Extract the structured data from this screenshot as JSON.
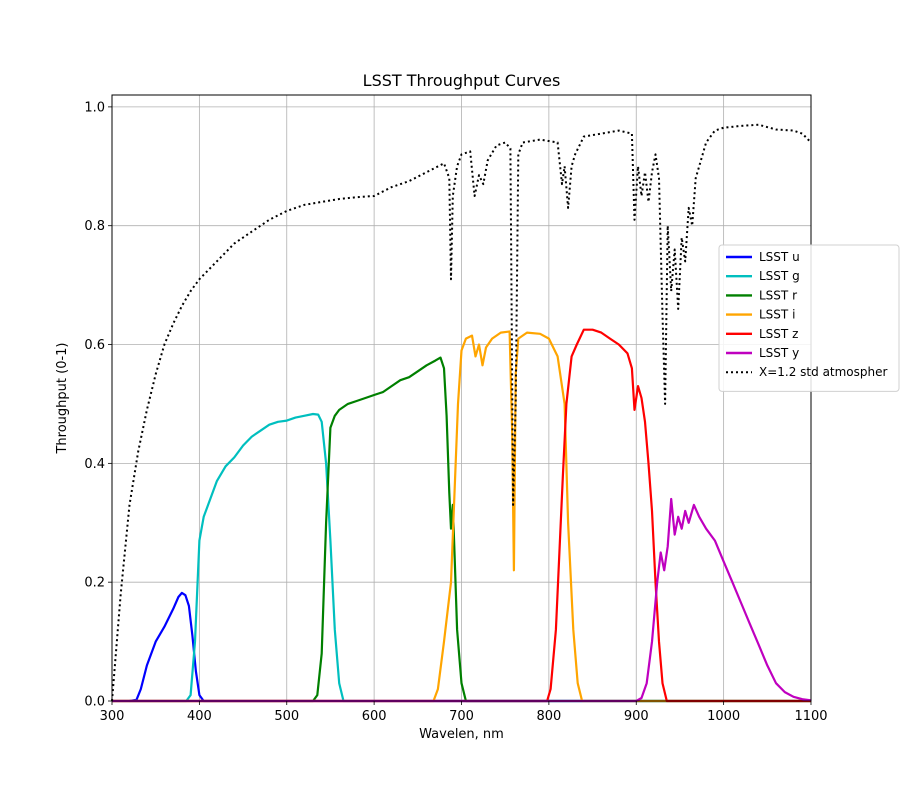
{
  "chart_data": {
    "type": "line",
    "title": "LSST Throughput Curves",
    "xlabel": "Wavelen, nm",
    "ylabel": "Throughput (0-1)",
    "xlim": [
      300,
      1100
    ],
    "ylim": [
      0,
      1.02
    ],
    "xticks": [
      "300",
      "400",
      "500",
      "600",
      "700",
      "800",
      "900",
      "1000",
      "1100"
    ],
    "yticks": [
      "0.0",
      "0.2",
      "0.4",
      "0.6",
      "0.8",
      "1.0"
    ],
    "grid": true,
    "legend_position": "right",
    "series": [
      {
        "name": "LSST u",
        "color": "#0000ff",
        "style": "solid",
        "points": [
          [
            320,
            0
          ],
          [
            328,
            0.002
          ],
          [
            333,
            0.02
          ],
          [
            340,
            0.06
          ],
          [
            350,
            0.1
          ],
          [
            360,
            0.125
          ],
          [
            370,
            0.155
          ],
          [
            376,
            0.175
          ],
          [
            380,
            0.182
          ],
          [
            384,
            0.178
          ],
          [
            388,
            0.16
          ],
          [
            392,
            0.11
          ],
          [
            396,
            0.05
          ],
          [
            400,
            0.01
          ],
          [
            405,
            0
          ],
          [
            1100,
            0
          ]
        ]
      },
      {
        "name": "LSST g",
        "color": "#00bfbf",
        "style": "solid",
        "points": [
          [
            300,
            0
          ],
          [
            385,
            0
          ],
          [
            390,
            0.01
          ],
          [
            395,
            0.1
          ],
          [
            400,
            0.27
          ],
          [
            405,
            0.31
          ],
          [
            410,
            0.33
          ],
          [
            420,
            0.37
          ],
          [
            430,
            0.395
          ],
          [
            440,
            0.41
          ],
          [
            450,
            0.43
          ],
          [
            460,
            0.445
          ],
          [
            470,
            0.455
          ],
          [
            480,
            0.465
          ],
          [
            490,
            0.47
          ],
          [
            500,
            0.472
          ],
          [
            510,
            0.477
          ],
          [
            520,
            0.48
          ],
          [
            530,
            0.483
          ],
          [
            536,
            0.482
          ],
          [
            540,
            0.47
          ],
          [
            545,
            0.4
          ],
          [
            550,
            0.27
          ],
          [
            555,
            0.12
          ],
          [
            560,
            0.03
          ],
          [
            565,
            0
          ],
          [
            1100,
            0
          ]
        ]
      },
      {
        "name": "LSST r",
        "color": "#008000",
        "style": "solid",
        "points": [
          [
            300,
            0
          ],
          [
            530,
            0
          ],
          [
            535,
            0.01
          ],
          [
            540,
            0.08
          ],
          [
            545,
            0.3
          ],
          [
            550,
            0.46
          ],
          [
            555,
            0.48
          ],
          [
            560,
            0.49
          ],
          [
            570,
            0.5
          ],
          [
            580,
            0.505
          ],
          [
            590,
            0.51
          ],
          [
            600,
            0.515
          ],
          [
            610,
            0.52
          ],
          [
            620,
            0.53
          ],
          [
            630,
            0.54
          ],
          [
            640,
            0.545
          ],
          [
            650,
            0.555
          ],
          [
            660,
            0.565
          ],
          [
            670,
            0.573
          ],
          [
            676,
            0.578
          ],
          [
            680,
            0.56
          ],
          [
            683,
            0.48
          ],
          [
            686,
            0.35
          ],
          [
            688,
            0.29
          ],
          [
            690,
            0.33
          ],
          [
            692,
            0.25
          ],
          [
            695,
            0.12
          ],
          [
            700,
            0.03
          ],
          [
            705,
            0
          ],
          [
            1100,
            0
          ]
        ]
      },
      {
        "name": "LSST i",
        "color": "#ffa500",
        "style": "solid",
        "points": [
          [
            300,
            0
          ],
          [
            668,
            0
          ],
          [
            673,
            0.02
          ],
          [
            680,
            0.1
          ],
          [
            688,
            0.2
          ],
          [
            692,
            0.35
          ],
          [
            696,
            0.5
          ],
          [
            700,
            0.59
          ],
          [
            705,
            0.61
          ],
          [
            712,
            0.615
          ],
          [
            716,
            0.58
          ],
          [
            720,
            0.6
          ],
          [
            724,
            0.565
          ],
          [
            728,
            0.595
          ],
          [
            735,
            0.61
          ],
          [
            745,
            0.62
          ],
          [
            755,
            0.622
          ],
          [
            758,
            0.45
          ],
          [
            760,
            0.22
          ],
          [
            762,
            0.55
          ],
          [
            765,
            0.61
          ],
          [
            775,
            0.62
          ],
          [
            790,
            0.618
          ],
          [
            800,
            0.61
          ],
          [
            810,
            0.58
          ],
          [
            818,
            0.5
          ],
          [
            822,
            0.3
          ],
          [
            828,
            0.12
          ],
          [
            833,
            0.03
          ],
          [
            838,
            0
          ],
          [
            1100,
            0
          ]
        ]
      },
      {
        "name": "LSST z",
        "color": "#ff0000",
        "style": "solid",
        "points": [
          [
            300,
            0
          ],
          [
            798,
            0
          ],
          [
            802,
            0.02
          ],
          [
            808,
            0.12
          ],
          [
            812,
            0.25
          ],
          [
            816,
            0.38
          ],
          [
            820,
            0.5
          ],
          [
            826,
            0.58
          ],
          [
            832,
            0.6
          ],
          [
            840,
            0.625
          ],
          [
            850,
            0.625
          ],
          [
            860,
            0.62
          ],
          [
            870,
            0.61
          ],
          [
            880,
            0.6
          ],
          [
            890,
            0.585
          ],
          [
            895,
            0.56
          ],
          [
            898,
            0.49
          ],
          [
            902,
            0.53
          ],
          [
            906,
            0.51
          ],
          [
            910,
            0.47
          ],
          [
            914,
            0.4
          ],
          [
            918,
            0.32
          ],
          [
            922,
            0.2
          ],
          [
            926,
            0.1
          ],
          [
            930,
            0.03
          ],
          [
            935,
            0
          ],
          [
            1100,
            0
          ]
        ]
      },
      {
        "name": "LSST y",
        "color": "#bf00bf",
        "style": "solid",
        "points": [
          [
            300,
            0
          ],
          [
            900,
            0
          ],
          [
            906,
            0.005
          ],
          [
            912,
            0.03
          ],
          [
            918,
            0.1
          ],
          [
            924,
            0.2
          ],
          [
            928,
            0.25
          ],
          [
            932,
            0.22
          ],
          [
            936,
            0.26
          ],
          [
            940,
            0.34
          ],
          [
            944,
            0.28
          ],
          [
            948,
            0.31
          ],
          [
            952,
            0.29
          ],
          [
            956,
            0.32
          ],
          [
            960,
            0.3
          ],
          [
            966,
            0.33
          ],
          [
            972,
            0.31
          ],
          [
            980,
            0.29
          ],
          [
            990,
            0.27
          ],
          [
            1000,
            0.235
          ],
          [
            1010,
            0.2
          ],
          [
            1020,
            0.165
          ],
          [
            1030,
            0.13
          ],
          [
            1040,
            0.095
          ],
          [
            1050,
            0.06
          ],
          [
            1060,
            0.03
          ],
          [
            1070,
            0.015
          ],
          [
            1080,
            0.007
          ],
          [
            1090,
            0.003
          ],
          [
            1100,
            0.001
          ]
        ]
      },
      {
        "name": "X=1.2 std atmospher",
        "color": "#000000",
        "style": "dotted",
        "points": [
          [
            300,
            0
          ],
          [
            310,
            0.18
          ],
          [
            320,
            0.33
          ],
          [
            330,
            0.42
          ],
          [
            340,
            0.49
          ],
          [
            350,
            0.55
          ],
          [
            360,
            0.6
          ],
          [
            370,
            0.635
          ],
          [
            380,
            0.665
          ],
          [
            390,
            0.69
          ],
          [
            400,
            0.71
          ],
          [
            420,
            0.74
          ],
          [
            440,
            0.77
          ],
          [
            460,
            0.79
          ],
          [
            480,
            0.81
          ],
          [
            500,
            0.825
          ],
          [
            520,
            0.835
          ],
          [
            540,
            0.84
          ],
          [
            560,
            0.845
          ],
          [
            580,
            0.848
          ],
          [
            600,
            0.85
          ],
          [
            620,
            0.865
          ],
          [
            640,
            0.875
          ],
          [
            660,
            0.89
          ],
          [
            680,
            0.905
          ],
          [
            686,
            0.88
          ],
          [
            688,
            0.71
          ],
          [
            690,
            0.85
          ],
          [
            695,
            0.9
          ],
          [
            700,
            0.92
          ],
          [
            710,
            0.925
          ],
          [
            715,
            0.85
          ],
          [
            720,
            0.885
          ],
          [
            725,
            0.87
          ],
          [
            730,
            0.91
          ],
          [
            740,
            0.935
          ],
          [
            750,
            0.94
          ],
          [
            756,
            0.93
          ],
          [
            759,
            0.33
          ],
          [
            762,
            0.5
          ],
          [
            765,
            0.92
          ],
          [
            770,
            0.94
          ],
          [
            790,
            0.945
          ],
          [
            810,
            0.94
          ],
          [
            815,
            0.87
          ],
          [
            818,
            0.9
          ],
          [
            822,
            0.83
          ],
          [
            826,
            0.9
          ],
          [
            830,
            0.92
          ],
          [
            840,
            0.95
          ],
          [
            860,
            0.955
          ],
          [
            880,
            0.96
          ],
          [
            895,
            0.955
          ],
          [
            898,
            0.81
          ],
          [
            902,
            0.9
          ],
          [
            906,
            0.85
          ],
          [
            910,
            0.89
          ],
          [
            914,
            0.84
          ],
          [
            918,
            0.89
          ],
          [
            922,
            0.92
          ],
          [
            926,
            0.88
          ],
          [
            930,
            0.65
          ],
          [
            933,
            0.5
          ],
          [
            936,
            0.8
          ],
          [
            940,
            0.69
          ],
          [
            944,
            0.76
          ],
          [
            948,
            0.66
          ],
          [
            952,
            0.78
          ],
          [
            956,
            0.74
          ],
          [
            960,
            0.83
          ],
          [
            964,
            0.8
          ],
          [
            968,
            0.88
          ],
          [
            972,
            0.9
          ],
          [
            980,
            0.94
          ],
          [
            990,
            0.96
          ],
          [
            1000,
            0.965
          ],
          [
            1020,
            0.968
          ],
          [
            1040,
            0.97
          ],
          [
            1060,
            0.962
          ],
          [
            1080,
            0.96
          ],
          [
            1090,
            0.955
          ],
          [
            1100,
            0.94
          ]
        ]
      }
    ]
  }
}
